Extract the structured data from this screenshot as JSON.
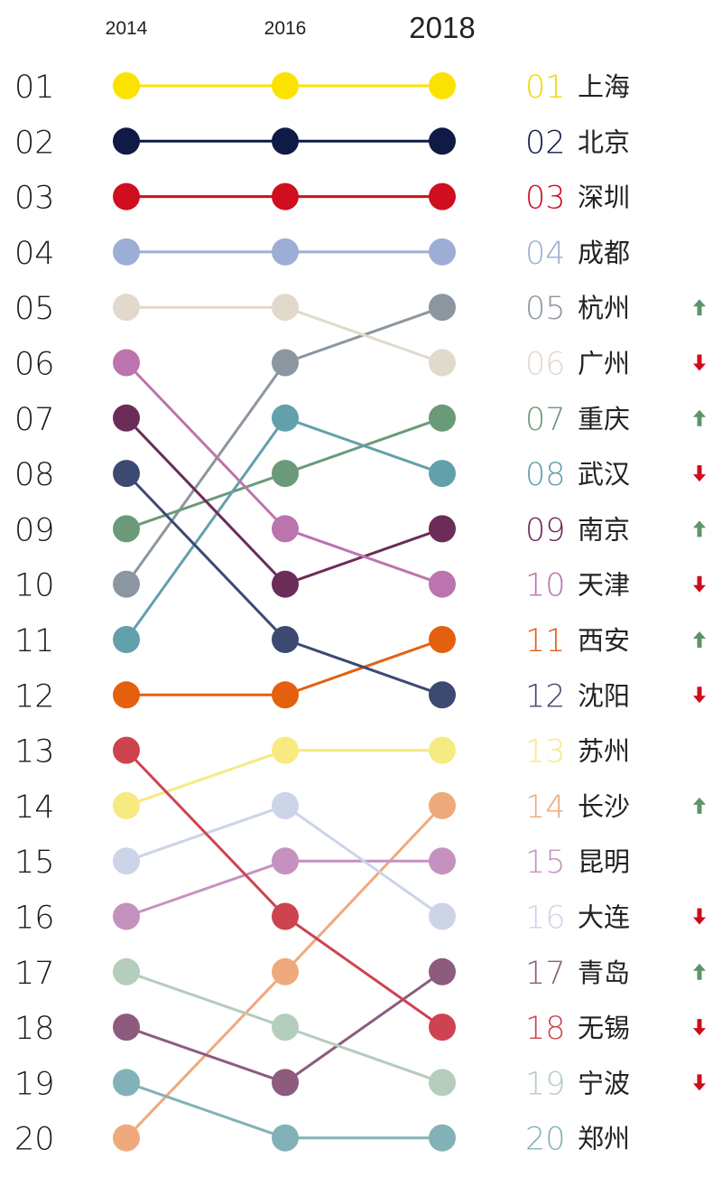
{
  "chart_data": {
    "type": "line",
    "x": [
      "2014",
      "2016",
      "2018"
    ],
    "rank_labels": [
      "01",
      "02",
      "03",
      "04",
      "05",
      "06",
      "07",
      "08",
      "09",
      "10",
      "11",
      "12",
      "13",
      "14",
      "15",
      "16",
      "17",
      "18",
      "19",
      "20"
    ],
    "series": [
      {
        "name": "上海",
        "values": [
          1,
          1,
          1
        ],
        "color": "#fce200",
        "label_color": "#f3d800",
        "num": "01",
        "trend": ""
      },
      {
        "name": "北京",
        "values": [
          2,
          2,
          2
        ],
        "color": "#0f1a45",
        "label_color": "#0f1a45",
        "num": "02",
        "trend": ""
      },
      {
        "name": "深圳",
        "values": [
          3,
          3,
          3
        ],
        "color": "#cf0e1f",
        "label_color": "#cf0e1f",
        "num": "03",
        "trend": ""
      },
      {
        "name": "成都",
        "values": [
          4,
          4,
          4
        ],
        "color": "#9daed6",
        "label_color": "#9daed6",
        "num": "04",
        "trend": ""
      },
      {
        "name": "杭州",
        "values": [
          10,
          6,
          5
        ],
        "color": "#8b96a0",
        "label_color": "#8b96a0",
        "num": "05",
        "trend": "up"
      },
      {
        "name": "广州",
        "values": [
          5,
          5,
          6
        ],
        "color": "#e2d9cd",
        "label_color": "#e2d9cd",
        "num": "06",
        "trend": "down"
      },
      {
        "name": "重庆",
        "values": [
          9,
          8,
          7
        ],
        "color": "#6a9a78",
        "label_color": "#6a9a78",
        "num": "07",
        "trend": "up"
      },
      {
        "name": "武汉",
        "values": [
          11,
          7,
          8
        ],
        "color": "#62a0ac",
        "label_color": "#62a0ac",
        "num": "08",
        "trend": "down"
      },
      {
        "name": "南京",
        "values": [
          7,
          10,
          9
        ],
        "color": "#6b2c58",
        "label_color": "#6b2c58",
        "num": "09",
        "trend": "up"
      },
      {
        "name": "天津",
        "values": [
          6,
          9,
          10
        ],
        "color": "#bb74ad",
        "label_color": "#bb74ad",
        "num": "10",
        "trend": "down"
      },
      {
        "name": "西安",
        "values": [
          12,
          12,
          11
        ],
        "color": "#e4600f",
        "label_color": "#e4600f",
        "num": "11",
        "trend": "up"
      },
      {
        "name": "沈阳",
        "values": [
          8,
          11,
          12
        ],
        "color": "#3c4a72",
        "label_color": "#3c4a72",
        "num": "12",
        "trend": "down"
      },
      {
        "name": "苏州",
        "values": [
          14,
          13,
          13
        ],
        "color": "#f7ea80",
        "label_color": "#f7ea80",
        "num": "13",
        "trend": ""
      },
      {
        "name": "长沙",
        "values": [
          20,
          17,
          14
        ],
        "color": "#eeaa7c",
        "label_color": "#eeaa7c",
        "num": "14",
        "trend": "up"
      },
      {
        "name": "昆明",
        "values": [
          16,
          15,
          15
        ],
        "color": "#c592c0",
        "label_color": "#c592c0",
        "num": "15",
        "trend": ""
      },
      {
        "name": "大连",
        "values": [
          15,
          14,
          16
        ],
        "color": "#ccd4e8",
        "label_color": "#ccd4e8",
        "num": "16",
        "trend": "down"
      },
      {
        "name": "青岛",
        "values": [
          18,
          19,
          17
        ],
        "color": "#8c5b7e",
        "label_color": "#8c5b7e",
        "num": "17",
        "trend": "up"
      },
      {
        "name": "无锡",
        "values": [
          13,
          16,
          18
        ],
        "color": "#cd4350",
        "label_color": "#cd4350",
        "num": "18",
        "trend": "down"
      },
      {
        "name": "宁波",
        "values": [
          17,
          18,
          19
        ],
        "color": "#b5cdbc",
        "label_color": "#b5cdbc",
        "num": "19",
        "trend": "down"
      },
      {
        "name": "郑州",
        "values": [
          19,
          20,
          20
        ],
        "color": "#82b2b8",
        "label_color": "#82b2b8",
        "num": "20",
        "trend": ""
      }
    ],
    "ylim": [
      1,
      20
    ],
    "y_reversed": true,
    "grid": false,
    "legend": "right",
    "arrow_colors": {
      "up": "#5e9469",
      "down": "#cc0d1c"
    }
  }
}
